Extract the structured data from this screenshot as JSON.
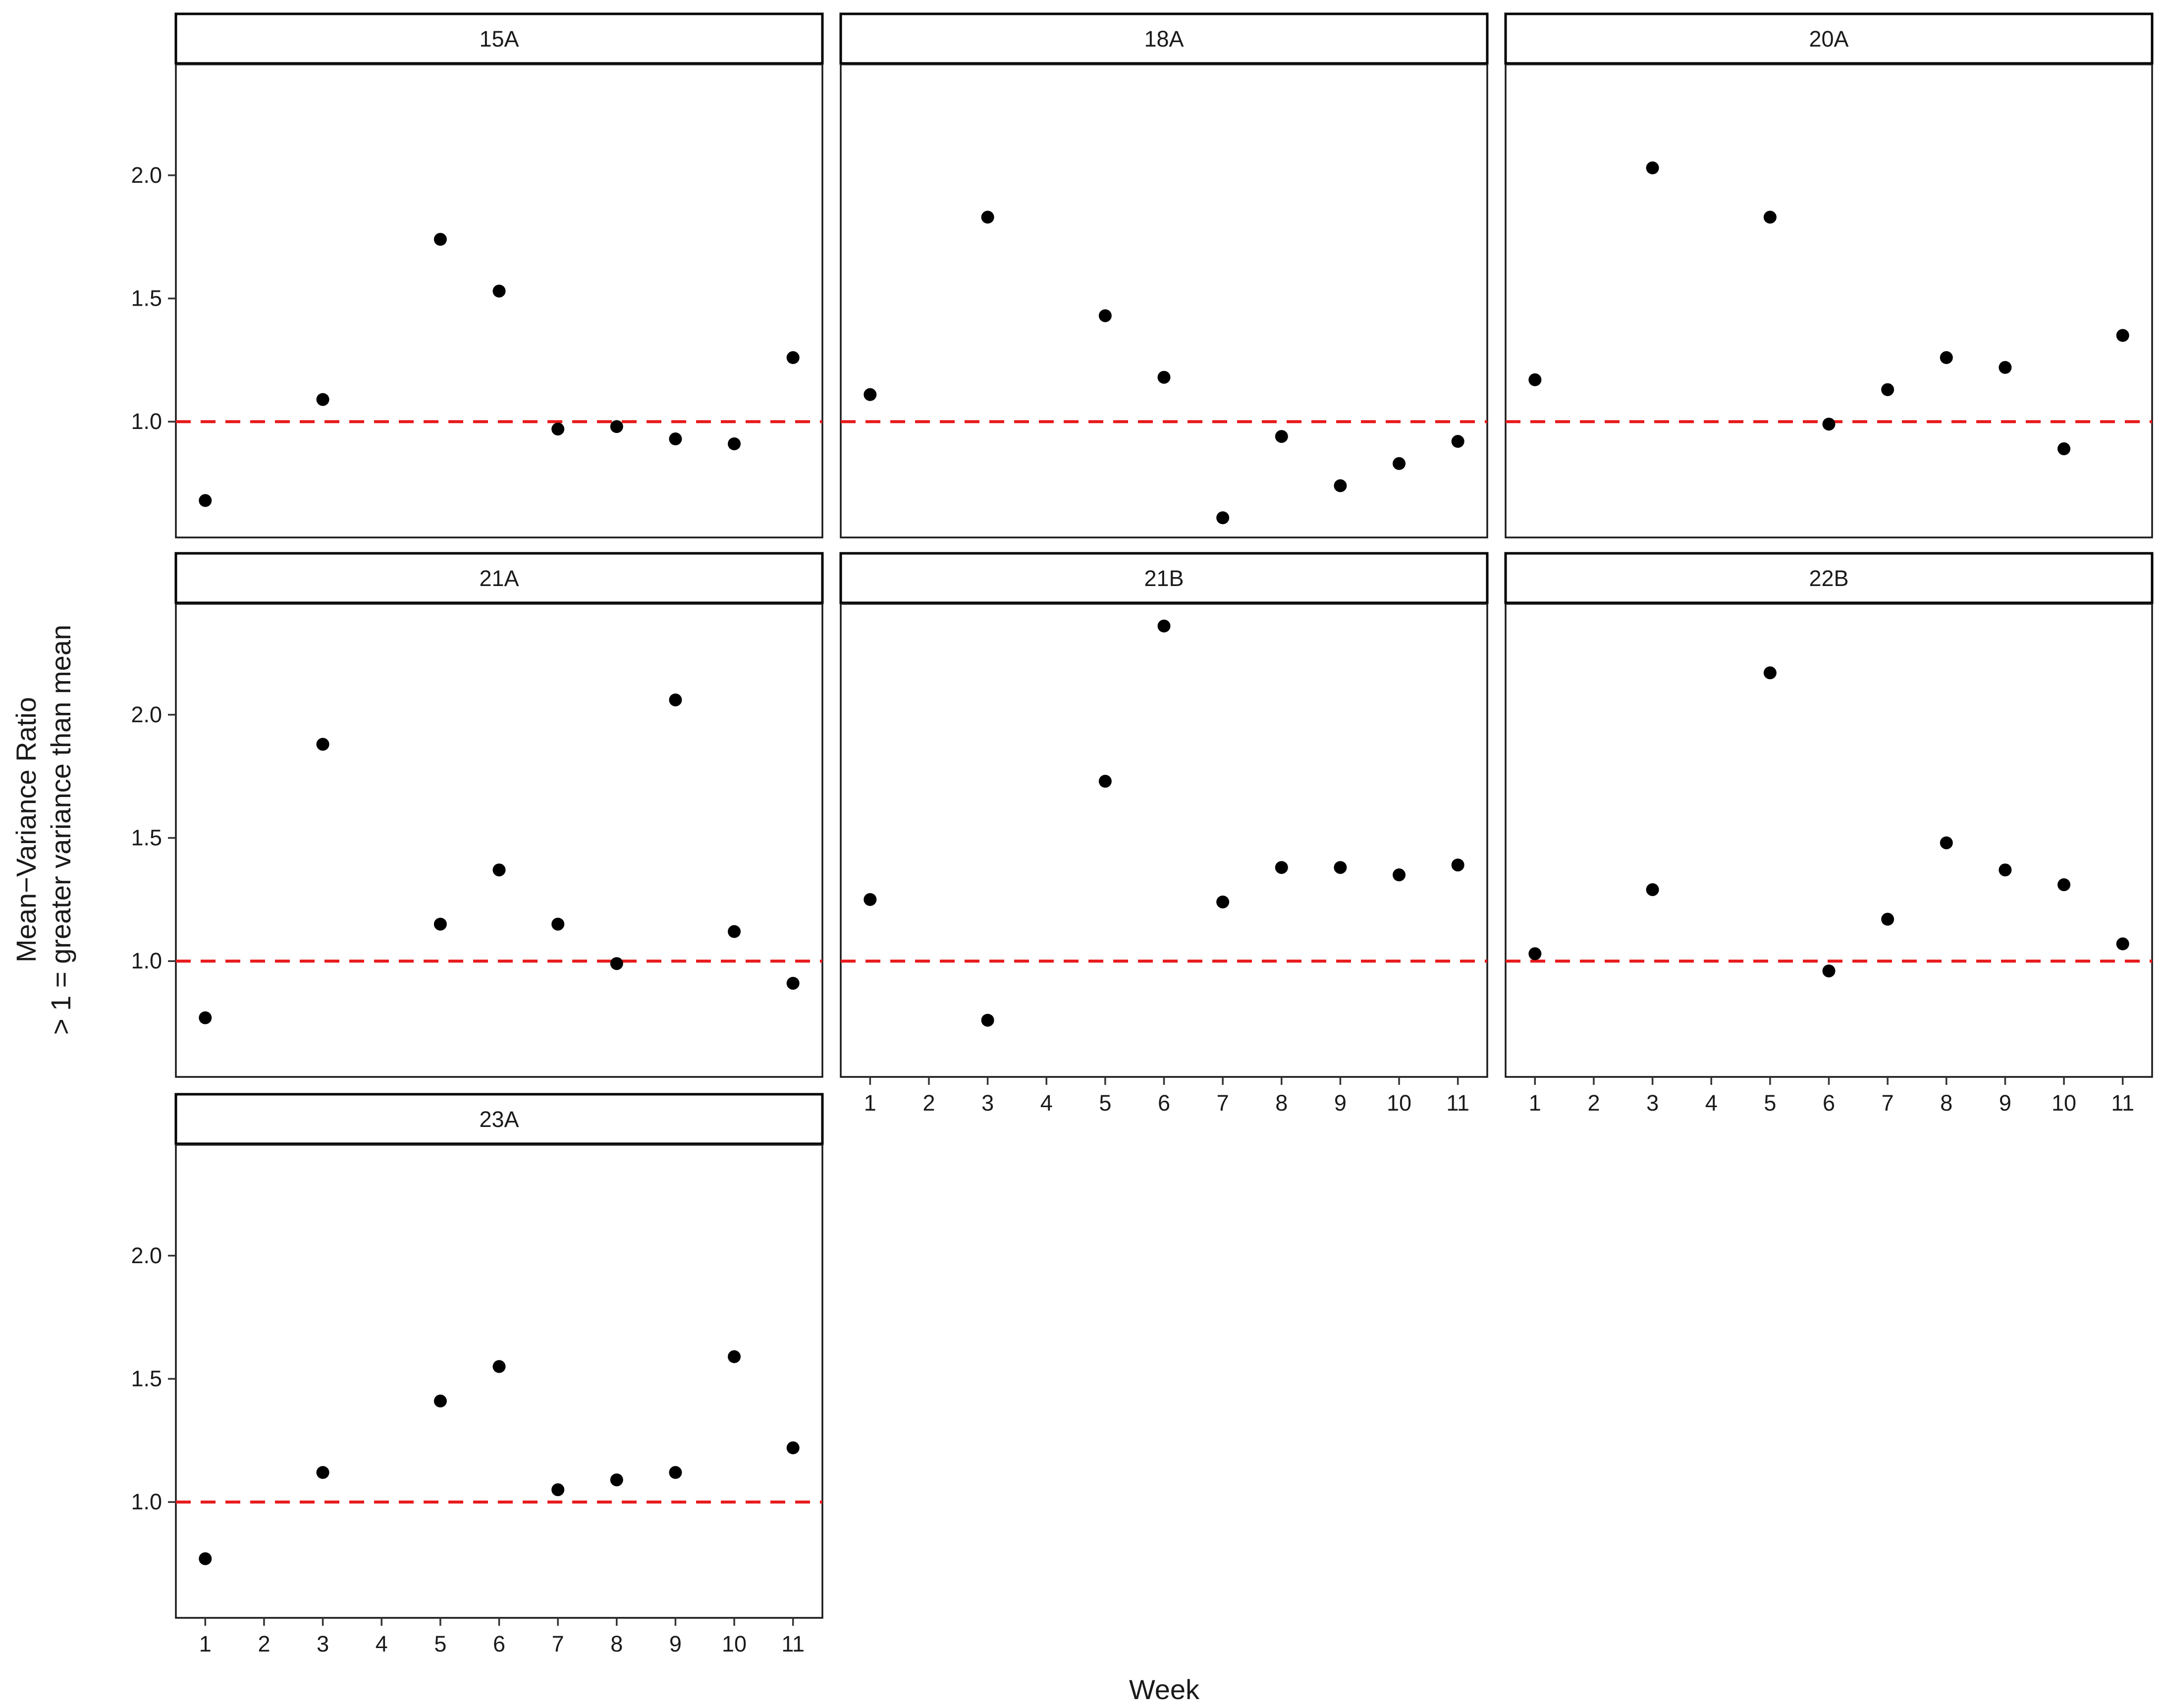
{
  "chart_data": {
    "type": "scatter",
    "layout": "facet_wrap",
    "ylabel_lines": [
      "Mean−Variance Ratio",
      "> 1 = greater variance than mean"
    ],
    "xlabel": "Week",
    "x_ticks": [
      1,
      2,
      3,
      4,
      5,
      6,
      7,
      8,
      9,
      10,
      11
    ],
    "y_ticks": [
      1.0,
      1.5,
      2.0
    ],
    "y_tick_labels": [
      "1.0",
      "1.5",
      "2.0"
    ],
    "xlim": [
      0.5,
      11.5
    ],
    "ylim": [
      0.53,
      2.45
    ],
    "reference_line": {
      "y": 1.0,
      "style": "dashed",
      "color": "#e8191b"
    },
    "point_color": "#000000",
    "grid": false,
    "panels": [
      {
        "label": "15A",
        "x": [
          1,
          3,
          5,
          6,
          7,
          8,
          9,
          10,
          11
        ],
        "y": [
          0.68,
          1.09,
          1.74,
          1.53,
          0.97,
          0.98,
          0.93,
          0.91,
          1.26
        ]
      },
      {
        "label": "18A",
        "x": [
          1,
          3,
          5,
          6,
          7,
          8,
          9,
          10,
          11
        ],
        "y": [
          1.11,
          1.83,
          1.43,
          1.18,
          0.61,
          0.94,
          0.74,
          0.83,
          0.92
        ]
      },
      {
        "label": "20A",
        "x": [
          1,
          3,
          5,
          6,
          7,
          8,
          9,
          10,
          11
        ],
        "y": [
          1.17,
          2.03,
          1.83,
          0.99,
          1.13,
          1.26,
          1.22,
          0.89,
          1.35
        ]
      },
      {
        "label": "21A",
        "x": [
          1,
          3,
          5,
          6,
          7,
          8,
          9,
          10,
          11
        ],
        "y": [
          0.77,
          1.88,
          1.15,
          1.37,
          1.15,
          0.99,
          2.06,
          1.12,
          0.91
        ]
      },
      {
        "label": "21B",
        "x": [
          1,
          3,
          5,
          6,
          7,
          8,
          9,
          10,
          11
        ],
        "y": [
          1.25,
          0.76,
          1.73,
          2.36,
          1.24,
          1.38,
          1.38,
          1.35,
          1.39
        ]
      },
      {
        "label": "22B",
        "x": [
          1,
          3,
          5,
          6,
          7,
          8,
          9,
          10,
          11
        ],
        "y": [
          1.03,
          1.29,
          2.17,
          0.96,
          1.17,
          1.48,
          1.37,
          1.31,
          1.07
        ]
      },
      {
        "label": "23A",
        "x": [
          1,
          3,
          5,
          6,
          7,
          8,
          9,
          10,
          11
        ],
        "y": [
          0.77,
          1.12,
          1.41,
          1.55,
          1.05,
          1.09,
          1.12,
          1.59,
          1.22
        ]
      }
    ]
  }
}
